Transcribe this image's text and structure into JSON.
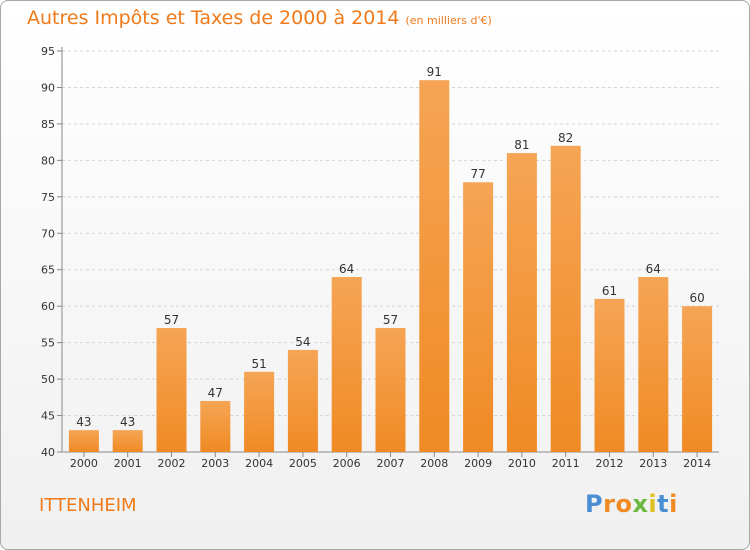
{
  "chart_data": {
    "type": "bar",
    "title": "Autres Impôts et Taxes de 2000 à 2014",
    "unit_note": "(en milliers d'€)",
    "categories": [
      "2000",
      "2001",
      "2002",
      "2003",
      "2004",
      "2005",
      "2006",
      "2007",
      "2008",
      "2009",
      "2010",
      "2011",
      "2012",
      "2013",
      "2014"
    ],
    "values": [
      43,
      43,
      57,
      47,
      51,
      54,
      64,
      57,
      91,
      77,
      81,
      82,
      61,
      64,
      60
    ],
    "ylim": [
      40,
      95
    ],
    "yticks": [
      40,
      45,
      50,
      55,
      60,
      65,
      70,
      75,
      80,
      85,
      90,
      95
    ],
    "grid": true,
    "bar_color": "#f08a24",
    "bar_color_light": "#f5a555"
  },
  "place_name": "ITTENHEIM",
  "brand": {
    "letters": [
      "P",
      "r",
      "o",
      "x",
      "i",
      "t",
      "i"
    ],
    "colors": [
      "#4a8fd4",
      "#f08a24",
      "#f08a24",
      "#6ab83e",
      "#e0c020",
      "#4a8fd4",
      "#f08a24"
    ]
  }
}
